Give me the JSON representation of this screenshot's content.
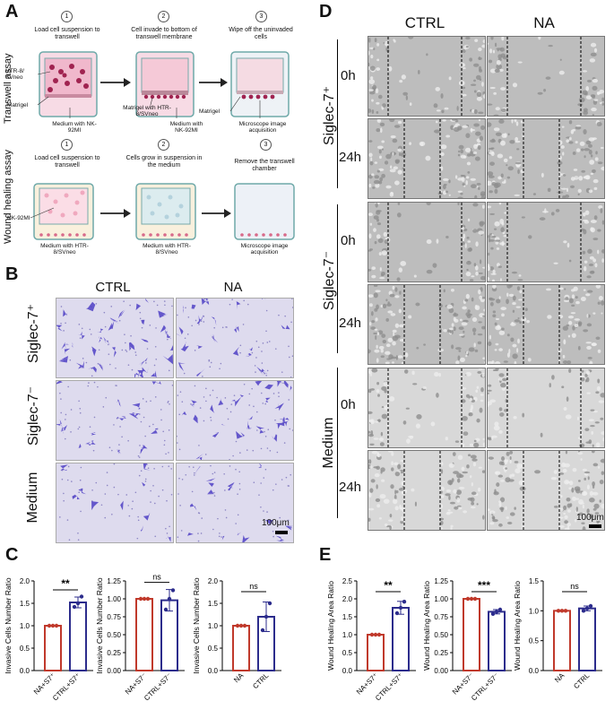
{
  "panels": {
    "A": "A",
    "B": "B",
    "C": "C",
    "D": "D",
    "E": "E"
  },
  "panel_a": {
    "transwell_side": "Transwell assay",
    "wound_side": "Wound healing assay",
    "transwell_steps": [
      {
        "num": "1",
        "title": "Load cell suspension to transwell"
      },
      {
        "num": "2",
        "title": "Cell invade to bottom of transwell membrane"
      },
      {
        "num": "3",
        "title": "Wipe off the uninvaded cells"
      }
    ],
    "wound_steps": [
      {
        "num": "1",
        "title": "Load cell suspension to transwell"
      },
      {
        "num": "2",
        "title": "Cells grow in suspension in the medium"
      },
      {
        "num": "3",
        "title": "Remove the transwell chamber"
      }
    ],
    "labels": {
      "htr": "HTR-8/ SVneo",
      "matrigel1": "Matrigel",
      "medium_nk": "Medium with NK-92MI",
      "matrigel_htr": "Matrigel with HTR-8/SVneo",
      "medium_nk2": "Medium with NK-92MI",
      "matrigel3": "Matrigel",
      "microscope1": "Microscope image acquisition",
      "nk92": "NK-92MI",
      "medium_htr1": "Medium with HTR-8/SVneo",
      "medium_htr2": "Medium with HTR-8/SVneo",
      "microscope2": "Microscope image acquisition"
    }
  },
  "panel_b": {
    "columns": [
      "CTRL",
      "NA"
    ],
    "rows": [
      "Siglec-7⁺",
      "Siglec-7⁻",
      "Medium"
    ],
    "scale_bar": "100μm"
  },
  "panel_d": {
    "columns": [
      "CTRL",
      "NA"
    ],
    "groups": [
      "Siglec-7⁺",
      "Siglec-7⁻",
      "Medium"
    ],
    "times": [
      "0h",
      "24h"
    ],
    "scale_bar": "100μm"
  },
  "colors": {
    "red": "#c0392b",
    "blue": "#2c2c8c",
    "purple": "#5a4fc8"
  },
  "chart_data": [
    {
      "type": "bar",
      "ylabel": "Invasive Cells Number Ratio",
      "categories": [
        "NA+S7⁺",
        "CTRL+S7⁺"
      ],
      "values": [
        1.0,
        1.52
      ],
      "errors": [
        0,
        0.12
      ],
      "points": [
        [
          1,
          1,
          1
        ],
        [
          1.42,
          1.5,
          1.65
        ]
      ],
      "ylim": [
        0,
        2.0
      ],
      "yticks": [
        "0.0",
        "0.5",
        "1.0",
        "1.5",
        "2.0"
      ],
      "sig": "**",
      "colors": [
        "#c0392b",
        "#2c2c8c"
      ]
    },
    {
      "type": "bar",
      "ylabel": "Invasive Cells Number Ratio",
      "categories": [
        "NA+S7⁻",
        "CTRL+S7⁻"
      ],
      "values": [
        1.0,
        0.98
      ],
      "errors": [
        0,
        0.15
      ],
      "points": [
        [
          1,
          1,
          1
        ],
        [
          0.85,
          1.0,
          1.12
        ]
      ],
      "ylim": [
        0,
        1.25
      ],
      "yticks": [
        "0.00",
        "0.25",
        "0.50",
        "0.75",
        "1.00",
        "1.25"
      ],
      "sig": "ns",
      "colors": [
        "#c0392b",
        "#2c2c8c"
      ]
    },
    {
      "type": "bar",
      "ylabel": "Invasive Cells Number Ratio",
      "categories": [
        "NA",
        "CTRL"
      ],
      "values": [
        1.0,
        1.2
      ],
      "errors": [
        0,
        0.33
      ],
      "points": [
        [
          1,
          1,
          1
        ],
        [
          0.9,
          1.2,
          1.5
        ]
      ],
      "ylim": [
        0,
        2.0
      ],
      "yticks": [
        "0.0",
        "0.5",
        "1.0",
        "1.5",
        "2.0"
      ],
      "sig": "ns",
      "colors": [
        "#c0392b",
        "#2c2c8c"
      ]
    },
    {
      "type": "bar",
      "ylabel": "Wound Healing Area Ratio",
      "categories": [
        "NA+S7⁺",
        "CTRL+S7⁺"
      ],
      "values": [
        1.0,
        1.75
      ],
      "errors": [
        0,
        0.18
      ],
      "points": [
        [
          1,
          1,
          1
        ],
        [
          1.6,
          1.75,
          1.92
        ]
      ],
      "ylim": [
        0,
        2.5
      ],
      "yticks": [
        "0.0",
        "0.5",
        "1.0",
        "1.5",
        "2.0",
        "2.5"
      ],
      "sig": "**",
      "colors": [
        "#c0392b",
        "#2c2c8c"
      ]
    },
    {
      "type": "bar",
      "ylabel": "Wound Healing Area Ratio",
      "categories": [
        "NA+S7⁻",
        "CTRL+S7⁻"
      ],
      "values": [
        1.0,
        0.82
      ],
      "errors": [
        0,
        0.03
      ],
      "points": [
        [
          1,
          1,
          1
        ],
        [
          0.79,
          0.82,
          0.85
        ]
      ],
      "ylim": [
        0,
        1.25
      ],
      "yticks": [
        "0.00",
        "0.25",
        "0.50",
        "0.75",
        "1.00",
        "1.25"
      ],
      "sig": "***",
      "colors": [
        "#c0392b",
        "#2c2c8c"
      ]
    },
    {
      "type": "bar",
      "ylabel": "Wound Healing Area Ratio",
      "categories": [
        "NA",
        "CTRL"
      ],
      "values": [
        1.0,
        1.04
      ],
      "errors": [
        0,
        0.04
      ],
      "points": [
        [
          1,
          1,
          1
        ],
        [
          1.0,
          1.04,
          1.08
        ]
      ],
      "ylim": [
        0,
        1.5
      ],
      "yticks": [
        "0.0",
        "0.5",
        "1.0",
        "1.5"
      ],
      "sig": "ns",
      "colors": [
        "#c0392b",
        "#2c2c8c"
      ]
    }
  ]
}
